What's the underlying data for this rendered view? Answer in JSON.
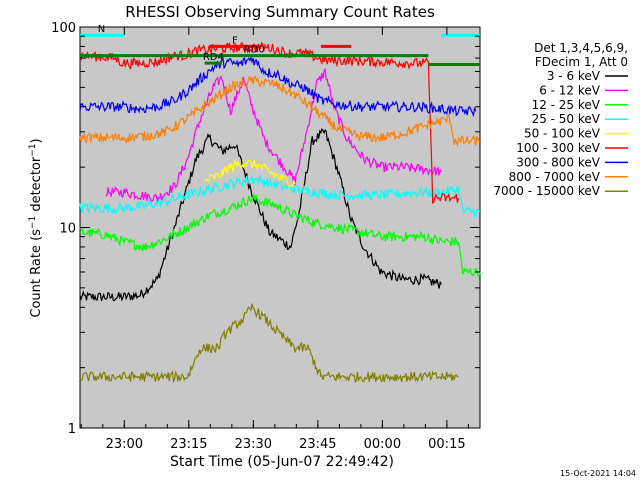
{
  "chart_data": {
    "type": "line",
    "title": "RHESSI Observing Summary Count Rates",
    "xlabel": "Start Time (05-Jun-07 22:49:42)",
    "ylabel": "Count Rate (s⁻¹ detector⁻¹)",
    "ylabel_main": "Count Rate (s",
    "ylabel_sup1": "−1",
    "ylabel_mid": " detector",
    "ylabel_sup2": "−1",
    "ylabel_end": ")",
    "yscale": "log",
    "ylim": [
      1,
      100
    ],
    "xlim_minutes": [
      0,
      93
    ],
    "x_ticks": [
      {
        "label": "23:00",
        "t": 10.3
      },
      {
        "label": "23:15",
        "t": 25.3
      },
      {
        "label": "23:30",
        "t": 40.3
      },
      {
        "label": "23:45",
        "t": 55.3
      },
      {
        "label": "00:00",
        "t": 70.3
      },
      {
        "label": "00:15",
        "t": 85.3
      }
    ],
    "y_ticks": [
      {
        "label": "1",
        "v": 1
      },
      {
        "label": "10",
        "v": 10
      },
      {
        "label": "100",
        "v": 100
      }
    ],
    "legend_header": [
      "Det 1,3,4,5,6,9,",
      "FDecim 1, Att 0"
    ],
    "timestamp": "15-Oct-2021 14:04",
    "background": "#c8c8c8",
    "series": [
      {
        "name": "3 - 6 keV",
        "color": "#000000",
        "points": [
          [
            0,
            4.5
          ],
          [
            10,
            4.5
          ],
          [
            14,
            4.6
          ],
          [
            18,
            5.5
          ],
          [
            22,
            10
          ],
          [
            27,
            22
          ],
          [
            30,
            28
          ],
          [
            33,
            24
          ],
          [
            36,
            26
          ],
          [
            40,
            15
          ],
          [
            44,
            9.5
          ],
          [
            49,
            8
          ],
          [
            51,
            12
          ],
          [
            54,
            27
          ],
          [
            57,
            30
          ],
          [
            60,
            19
          ],
          [
            63,
            11
          ],
          [
            66,
            8
          ],
          [
            70,
            6
          ],
          [
            75,
            5.5
          ],
          [
            80,
            5.5
          ],
          [
            84,
            5.2
          ]
        ]
      },
      {
        "name": "6 - 12 keV",
        "color": "#ff00ff",
        "points": [
          [
            6,
            15
          ],
          [
            10,
            15
          ],
          [
            14,
            14.5
          ],
          [
            18,
            14
          ],
          [
            22,
            16
          ],
          [
            25,
            22
          ],
          [
            28,
            35
          ],
          [
            31,
            50
          ],
          [
            33,
            56
          ],
          [
            35,
            38
          ],
          [
            38,
            55
          ],
          [
            40,
            40
          ],
          [
            43,
            27
          ],
          [
            46,
            22
          ],
          [
            50,
            17
          ],
          [
            53,
            32
          ],
          [
            55,
            52
          ],
          [
            57,
            60
          ],
          [
            59,
            40
          ],
          [
            62,
            28
          ],
          [
            66,
            22
          ],
          [
            70,
            20
          ],
          [
            75,
            20
          ],
          [
            80,
            19.5
          ],
          [
            84,
            19
          ]
        ]
      },
      {
        "name": "12 - 25 keV",
        "color": "#00ff00",
        "points": [
          [
            0,
            9.5
          ],
          [
            6,
            9.2
          ],
          [
            10,
            8.5
          ],
          [
            15,
            8
          ],
          [
            20,
            8.8
          ],
          [
            25,
            10
          ],
          [
            30,
            11.5
          ],
          [
            35,
            12.5
          ],
          [
            40,
            14
          ],
          [
            45,
            13
          ],
          [
            50,
            11.5
          ],
          [
            55,
            10.5
          ],
          [
            60,
            10
          ],
          [
            65,
            9.5
          ],
          [
            70,
            9
          ],
          [
            75,
            9
          ],
          [
            80,
            9
          ],
          [
            84,
            8.5
          ],
          [
            88,
            8.5
          ],
          [
            89,
            6
          ],
          [
            93,
            6
          ]
        ]
      },
      {
        "name": "25 - 50 keV",
        "color": "#00ffff",
        "points": [
          [
            0,
            12.5
          ],
          [
            10,
            12.5
          ],
          [
            15,
            12.8
          ],
          [
            20,
            13.5
          ],
          [
            25,
            14.5
          ],
          [
            30,
            15.5
          ],
          [
            35,
            16.5
          ],
          [
            40,
            17.5
          ],
          [
            45,
            16.5
          ],
          [
            50,
            15.5
          ],
          [
            55,
            15
          ],
          [
            60,
            14.5
          ],
          [
            65,
            14.5
          ],
          [
            70,
            14.5
          ],
          [
            75,
            14.8
          ],
          [
            80,
            15
          ],
          [
            84,
            15
          ],
          [
            88,
            15.5
          ],
          [
            89,
            12
          ],
          [
            93,
            12
          ]
        ]
      },
      {
        "name": "50 - 100 keV",
        "color": "#ffff00",
        "points": [
          [
            29,
            17
          ],
          [
            32,
            18
          ],
          [
            35,
            20
          ],
          [
            38,
            21
          ],
          [
            41,
            20.5
          ],
          [
            44,
            19
          ],
          [
            47,
            17.5
          ],
          [
            50,
            16.5
          ]
        ]
      },
      {
        "name": "100 - 300 keV",
        "color": "#ff0000",
        "points": [
          [
            0,
            72
          ],
          [
            5,
            71
          ],
          [
            8,
            70
          ],
          [
            10,
            66
          ],
          [
            14,
            66
          ],
          [
            18,
            67
          ],
          [
            22,
            72
          ],
          [
            24,
            72
          ],
          [
            27,
            76
          ],
          [
            32,
            78
          ],
          [
            38,
            79
          ],
          [
            44,
            79
          ],
          [
            46,
            77
          ],
          [
            48,
            74
          ],
          [
            52,
            74
          ],
          [
            57,
            68
          ],
          [
            62,
            68
          ],
          [
            70,
            67
          ],
          [
            78,
            66
          ],
          [
            81,
            66
          ],
          [
            82,
            14
          ],
          [
            88,
            14
          ]
        ]
      },
      {
        "name": "300 - 800 keV",
        "color": "#0000ff",
        "points": [
          [
            0,
            40
          ],
          [
            10,
            40
          ],
          [
            14,
            39
          ],
          [
            18,
            40
          ],
          [
            22,
            43
          ],
          [
            25,
            48
          ],
          [
            28,
            55
          ],
          [
            31,
            63
          ],
          [
            34,
            67
          ],
          [
            37,
            65
          ],
          [
            40,
            70
          ],
          [
            43,
            60
          ],
          [
            46,
            58
          ],
          [
            49,
            52
          ],
          [
            52,
            50
          ],
          [
            56,
            43
          ],
          [
            60,
            41
          ],
          [
            66,
            40
          ],
          [
            72,
            40
          ],
          [
            78,
            40
          ],
          [
            84,
            39
          ],
          [
            88,
            38
          ],
          [
            92,
            38
          ]
        ]
      },
      {
        "name": "800 - 7000 keV",
        "color": "#ff8000",
        "points": [
          [
            0,
            28
          ],
          [
            10,
            28
          ],
          [
            15,
            28.5
          ],
          [
            20,
            30
          ],
          [
            25,
            35
          ],
          [
            30,
            42
          ],
          [
            35,
            50
          ],
          [
            40,
            54
          ],
          [
            45,
            52
          ],
          [
            50,
            46
          ],
          [
            55,
            38
          ],
          [
            60,
            31
          ],
          [
            65,
            28.5
          ],
          [
            70,
            28
          ],
          [
            75,
            29.5
          ],
          [
            80,
            32
          ],
          [
            84,
            34
          ],
          [
            86,
            35
          ],
          [
            87,
            27
          ],
          [
            93,
            27
          ]
        ]
      },
      {
        "name": "7000 - 15000 keV",
        "color": "#808000",
        "points": [
          [
            0,
            1.8
          ],
          [
            10,
            1.8
          ],
          [
            25,
            1.8
          ],
          [
            28,
            2.5
          ],
          [
            32,
            2.5
          ],
          [
            34,
            3
          ],
          [
            38,
            3.5
          ],
          [
            40,
            4
          ],
          [
            43,
            3.5
          ],
          [
            46,
            3
          ],
          [
            50,
            2.5
          ],
          [
            53,
            2.5
          ],
          [
            56,
            1.8
          ],
          [
            70,
            1.8
          ],
          [
            80,
            1.8
          ],
          [
            88,
            1.8
          ]
        ]
      }
    ],
    "annotations": [
      {
        "text": "N",
        "color": "#00ffff",
        "t0": 0,
        "t1": 10,
        "v": 91
      },
      {
        "text": "",
        "color": "#00ffff",
        "t0": 84,
        "t1": 93,
        "v": 91
      },
      {
        "text": "F",
        "color": "#ff0000",
        "t0": 30,
        "t1": 42,
        "v": 80
      },
      {
        "text": "",
        "color": "#ff0000",
        "t0": 56,
        "t1": 63,
        "v": 80
      },
      {
        "text": "RD0",
        "color": "#008000",
        "t0": 0,
        "t1": 81,
        "v": 72
      },
      {
        "text": "",
        "color": "#008000",
        "t0": 81,
        "t1": 93,
        "v": 65
      },
      {
        "text": "RD4",
        "color": "#008000",
        "t0": 29,
        "t1": 33,
        "v": 66
      }
    ],
    "grid": false,
    "legend": "right"
  }
}
